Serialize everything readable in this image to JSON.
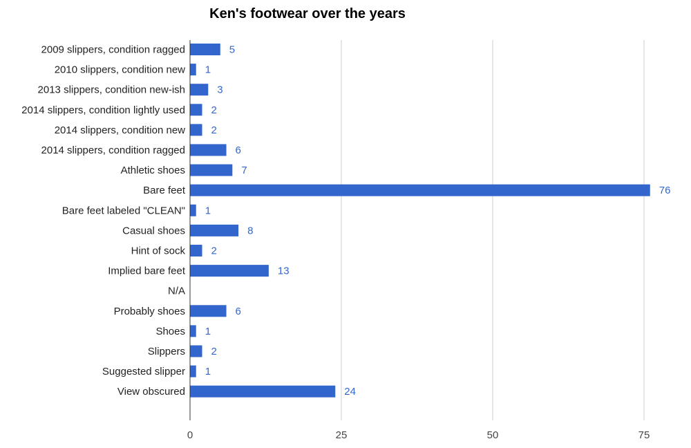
{
  "chart_data": {
    "type": "bar",
    "orientation": "horizontal",
    "title": "Ken's footwear over the years",
    "xlabel": "",
    "ylabel": "",
    "categories": [
      "2009 slippers, condition ragged",
      "2010 slippers, condition new",
      "2013 slippers, condition new-ish",
      "2014 slippers, condition lightly used",
      "2014 slippers, condition new",
      "2014 slippers, condition ragged",
      "Athletic shoes",
      "Bare feet",
      "Bare feet labeled \"CLEAN\"",
      "Casual shoes",
      "Hint of sock",
      "Implied bare feet",
      "N/A",
      "Probably shoes",
      "Shoes",
      "Slippers",
      "Suggested slipper",
      "View obscured"
    ],
    "values": [
      5,
      1,
      3,
      2,
      2,
      6,
      7,
      76,
      1,
      8,
      2,
      13,
      null,
      6,
      1,
      2,
      1,
      24
    ],
    "xlim": [
      0,
      80
    ],
    "xticks": [
      0,
      25,
      50,
      75
    ],
    "grid": true,
    "legend": "none",
    "colors": {
      "bar": "#3366cc",
      "value_label": "#3366cc",
      "grid": "#cccccc",
      "axis": "#333333"
    }
  }
}
